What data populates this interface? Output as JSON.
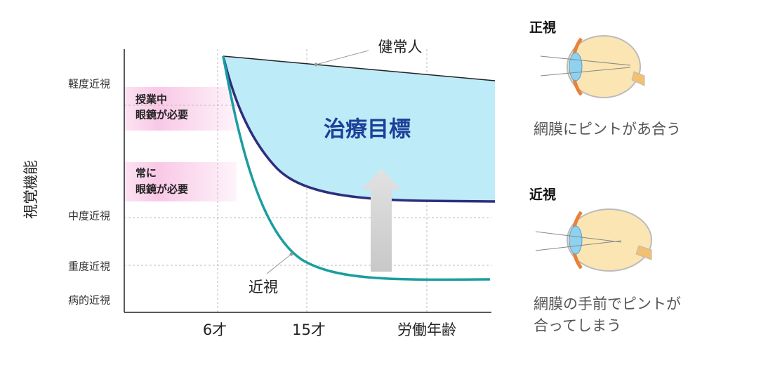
{
  "diagram": {
    "y_axis_title": "視覚機能",
    "y_labels": [
      "軽度近視",
      "中度近視",
      "重度近視",
      "病的近視"
    ],
    "x_labels": [
      "6才",
      "15才",
      "労働年齢"
    ],
    "bands": [
      {
        "lines": [
          "授業中",
          "眼鏡が必要"
        ]
      },
      {
        "lines": [
          "常に",
          "眼鏡が必要"
        ]
      }
    ],
    "target_label": "治療目標",
    "normal_label": "健常人",
    "myopia_label": "近視",
    "panels": [
      {
        "title": "正視",
        "lines": [
          "網膜にピントがあ合う"
        ]
      },
      {
        "title": "近視",
        "lines": [
          "網膜の手前でピントが",
          "合ってしまう"
        ]
      }
    ]
  }
}
